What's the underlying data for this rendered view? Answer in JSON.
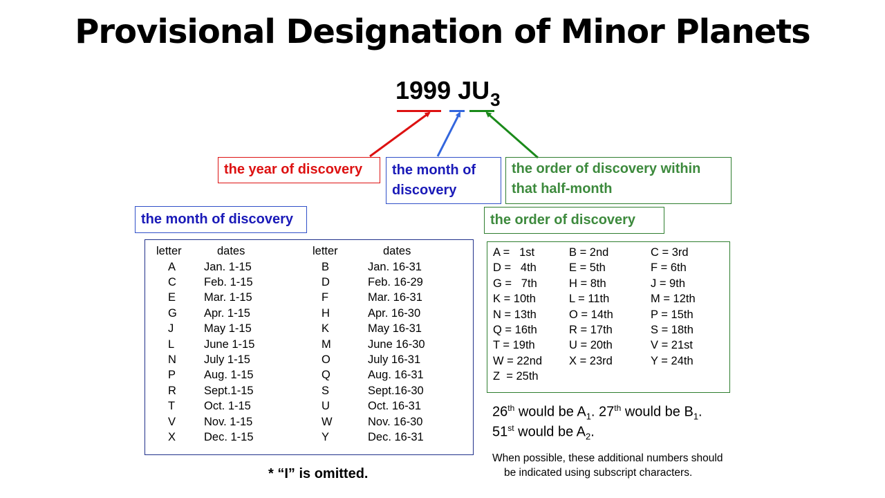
{
  "title": "Provisional Designation of Minor Planets",
  "designation": {
    "year": "1999",
    "letters": "JU",
    "subscript": "3"
  },
  "labels": {
    "year_box": "the year of discovery",
    "month_box": "the month of discovery",
    "order_box": "the order of discovery within that half-month",
    "month_header": "the month of discovery",
    "order_header": "the order of discovery"
  },
  "colors": {
    "year": "#dd1111",
    "month": "#1a1ab8",
    "order": "#3d8a3d"
  },
  "month_table": {
    "headers": [
      "letter",
      "dates",
      "letter",
      "dates"
    ],
    "rows": [
      [
        "A",
        "Jan. 1-15",
        "B",
        "Jan. 16-31"
      ],
      [
        "C",
        "Feb. 1-15",
        "D",
        "Feb. 16-29"
      ],
      [
        "E",
        "Mar. 1-15",
        "F",
        "Mar. 16-31"
      ],
      [
        "G",
        "Apr. 1-15",
        "H",
        "Apr. 16-30"
      ],
      [
        "J",
        "May 1-15",
        "K",
        "May  16-31"
      ],
      [
        "L",
        "June 1-15",
        "M",
        "June 16-30"
      ],
      [
        "N",
        "July 1-15",
        "O",
        "July 16-31"
      ],
      [
        "P",
        "Aug. 1-15",
        "Q",
        "Aug. 16-31"
      ],
      [
        "R",
        "Sept.1-15",
        "S",
        "Sept.16-30"
      ],
      [
        "T",
        "Oct. 1-15",
        "U",
        "Oct. 16-31"
      ],
      [
        "V",
        "Nov. 1-15",
        "W",
        "Nov. 16-30"
      ],
      [
        "X",
        "Dec. 1-15",
        "Y",
        "Dec. 16-31"
      ]
    ]
  },
  "order_table": {
    "rows": [
      [
        "A =   1st",
        "B = 2nd",
        "C = 3rd"
      ],
      [
        "D =   4th",
        "E = 5th",
        "F = 6th"
      ],
      [
        "G =   7th",
        "H = 8th",
        "J = 9th"
      ],
      [
        "K = 10th",
        "L = 11th",
        "M = 12th"
      ],
      [
        "N = 13th",
        "O = 14th",
        "P = 15th"
      ],
      [
        "Q = 16th",
        "R = 17th",
        "S = 18th"
      ],
      [
        "T = 19th",
        "U = 20th",
        "V = 21st"
      ],
      [
        "W = 22nd",
        "X = 23rd",
        "Y = 24th"
      ],
      [
        "Z  = 25th",
        "",
        ""
      ]
    ]
  },
  "omitted_note": "* “I” is omitted.",
  "examples": {
    "line1": {
      "n1": "26",
      "s1": "th",
      "t1": " would be A",
      "b1": "1",
      "t2": ". 27",
      "s2": "th",
      "t3": " would be B",
      "b2": "1",
      "t4": "."
    },
    "line2": {
      "n1": "51",
      "s1": "st",
      "t1": " would be A",
      "b1": "2",
      "t2": "."
    }
  },
  "subscript_note": {
    "line1": "When possible, these additional numbers should",
    "line2": "be indicated using subscript characters."
  }
}
